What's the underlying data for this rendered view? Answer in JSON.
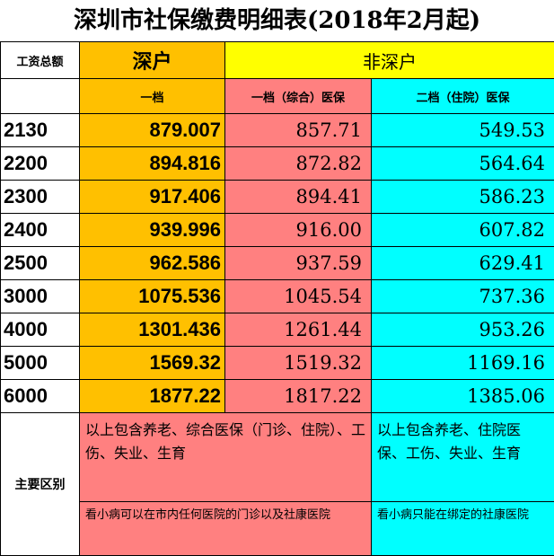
{
  "title": "深圳市社保缴费明细表(2018年2月起)",
  "headers": {
    "wage_total": "工资总额",
    "local": "深户",
    "nonlocal": "非深户",
    "local_tier": "一档",
    "nonlocal_tier1": "一档（综合）医保",
    "nonlocal_tier2": "二档（住院）医保"
  },
  "rows": [
    {
      "base": "2130",
      "local": "879.007",
      "tier1": "857.71",
      "tier2": "549.53"
    },
    {
      "base": "2200",
      "local": "894.816",
      "tier1": "872.82",
      "tier2": "564.64"
    },
    {
      "base": "2300",
      "local": "917.406",
      "tier1": "894.41",
      "tier2": "586.23"
    },
    {
      "base": "2400",
      "local": "939.996",
      "tier1": "916.00",
      "tier2": "607.82"
    },
    {
      "base": "2500",
      "local": "962.586",
      "tier1": "937.59",
      "tier2": "629.41"
    },
    {
      "base": "3000",
      "local": "1075.536",
      "tier1": "1045.54",
      "tier2": "737.36"
    },
    {
      "base": "4000",
      "local": "1301.436",
      "tier1": "1261.44",
      "tier2": "953.26"
    },
    {
      "base": "5000",
      "local": "1569.32",
      "tier1": "1519.32",
      "tier2": "1169.16"
    },
    {
      "base": "6000",
      "local": "1877.22",
      "tier1": "1817.22",
      "tier2": "1385.06"
    }
  ],
  "difference": {
    "label": "主要区别",
    "tier1_text": "以上包含养老、综合医保（门诊、住院）、工伤、失业、生育",
    "tier2_text": "以上包含养老、住院医保、工伤、失业、生育",
    "tier1_note": "看小病可以在市内任何医院的门诊以及社康医院",
    "tier2_note": "看小病只能在绑定的社康医院"
  }
}
